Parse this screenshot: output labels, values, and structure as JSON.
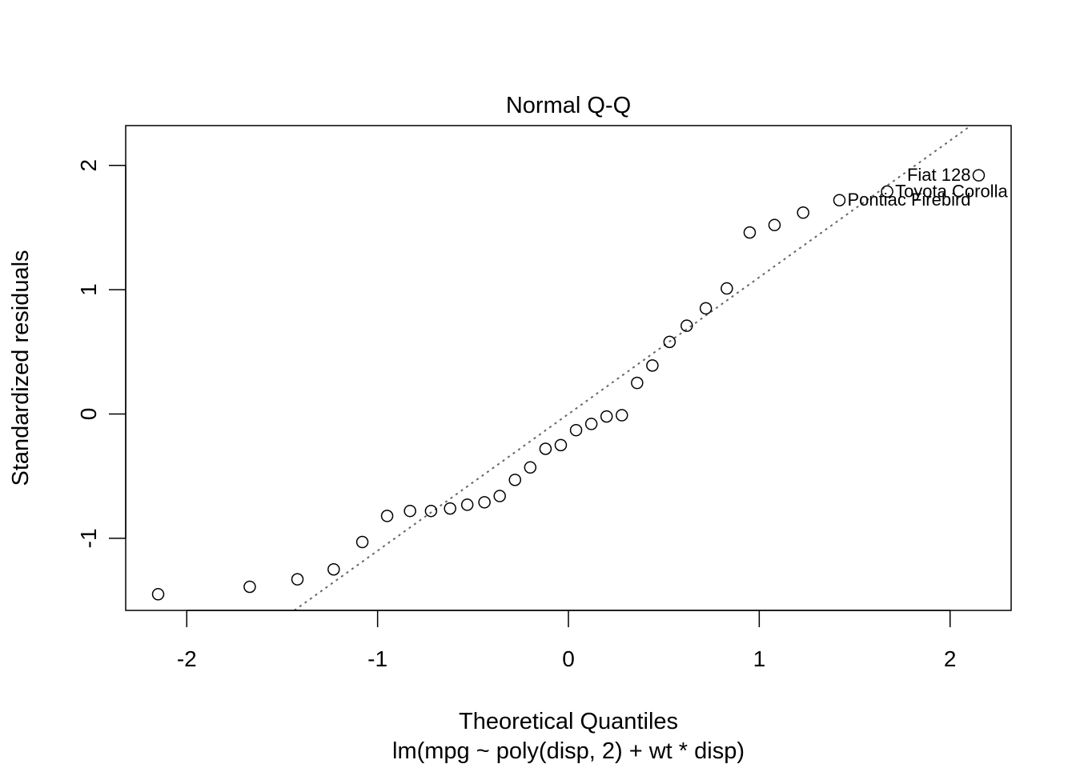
{
  "chart_data": {
    "type": "scatter",
    "title": "Normal Q-Q",
    "xlabel": "Theoretical Quantiles",
    "subtitle": "lm(mpg ~ poly(disp, 2) + wt * disp)",
    "ylabel": "Standardized residuals",
    "xlim": [
      -2.32,
      2.32
    ],
    "ylim": [
      -1.58,
      2.32
    ],
    "xticks": [
      -2,
      -1,
      0,
      1,
      2
    ],
    "yticks": [
      -1,
      0,
      1,
      2
    ],
    "xtick_labels": [
      "-2",
      "-1",
      "0",
      "1",
      "2"
    ],
    "ytick_labels": [
      "-1",
      "0",
      "1",
      "2"
    ],
    "grid": false,
    "points": [
      {
        "x": -2.15,
        "y": -1.45
      },
      {
        "x": -1.67,
        "y": -1.39
      },
      {
        "x": -1.42,
        "y": -1.33
      },
      {
        "x": -1.23,
        "y": -1.25
      },
      {
        "x": -1.08,
        "y": -1.03
      },
      {
        "x": -0.95,
        "y": -0.82
      },
      {
        "x": -0.83,
        "y": -0.78
      },
      {
        "x": -0.72,
        "y": -0.78
      },
      {
        "x": -0.62,
        "y": -0.76
      },
      {
        "x": -0.53,
        "y": -0.73
      },
      {
        "x": -0.44,
        "y": -0.71
      },
      {
        "x": -0.36,
        "y": -0.66
      },
      {
        "x": -0.28,
        "y": -0.53
      },
      {
        "x": -0.2,
        "y": -0.43
      },
      {
        "x": -0.12,
        "y": -0.28
      },
      {
        "x": -0.04,
        "y": -0.25
      },
      {
        "x": 0.04,
        "y": -0.13
      },
      {
        "x": 0.12,
        "y": -0.08
      },
      {
        "x": 0.2,
        "y": -0.02
      },
      {
        "x": 0.28,
        "y": -0.01
      },
      {
        "x": 0.36,
        "y": 0.25
      },
      {
        "x": 0.44,
        "y": 0.39
      },
      {
        "x": 0.53,
        "y": 0.58
      },
      {
        "x": 0.62,
        "y": 0.71
      },
      {
        "x": 0.72,
        "y": 0.85
      },
      {
        "x": 0.83,
        "y": 1.01
      },
      {
        "x": 0.95,
        "y": 1.46
      },
      {
        "x": 1.08,
        "y": 1.52
      },
      {
        "x": 1.23,
        "y": 1.62
      },
      {
        "x": 1.42,
        "y": 1.72,
        "label": "Pontiac Firebird"
      },
      {
        "x": 1.67,
        "y": 1.79,
        "label": "Toyota Corolla"
      },
      {
        "x": 2.15,
        "y": 1.92,
        "label": "Fiat 128"
      }
    ],
    "reference_line": {
      "intercept": 0.0,
      "slope": 1.1,
      "style": "dotted",
      "color": "#666666"
    }
  }
}
